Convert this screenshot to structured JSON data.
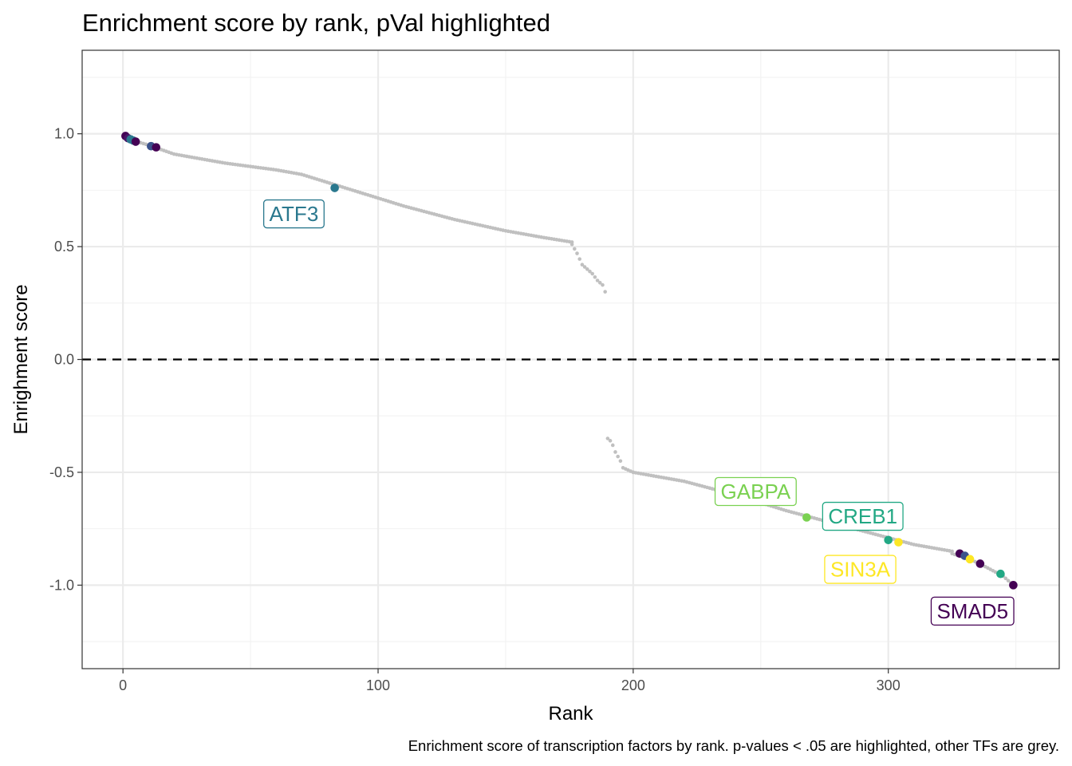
{
  "chart_data": {
    "type": "scatter",
    "title": "Enrichment score by rank, pVal highlighted",
    "xlabel": "Rank",
    "ylabel": "Enrighment score",
    "caption": "Enrichment score of transcription factors by rank. p-values < .05 are highlighted, other TFs are grey.",
    "xlim": [
      -16,
      367
    ],
    "ylim": [
      -1.37,
      1.37
    ],
    "x_ticks": [
      0,
      100,
      200,
      300
    ],
    "x_tick_labels": [
      "0",
      "100",
      "200",
      "300"
    ],
    "y_ticks": [
      -1.0,
      -0.5,
      0.0,
      0.5,
      1.0
    ],
    "y_tick_labels": [
      "-1.0",
      "-0.5",
      "0.0",
      "0.5",
      "1.0"
    ],
    "grid": true,
    "reference_line": {
      "y": 0,
      "style": "dashed"
    },
    "grey_color": "#c0c0c0",
    "grey_segments": [
      {
        "x": [
          1,
          10,
          20,
          40,
          60,
          70,
          90,
          110,
          130,
          150,
          165,
          176
        ],
        "y": [
          0.98,
          0.95,
          0.91,
          0.87,
          0.84,
          0.82,
          0.75,
          0.68,
          0.62,
          0.57,
          0.54,
          0.52
        ]
      },
      {
        "x": [
          176,
          178,
          180,
          182,
          184,
          186,
          188,
          189
        ],
        "y": [
          0.51,
          0.47,
          0.42,
          0.4,
          0.38,
          0.35,
          0.33,
          0.3
        ]
      },
      {
        "x": [
          190,
          191,
          192,
          193,
          194,
          195,
          196,
          198,
          200
        ],
        "y": [
          -0.35,
          -0.36,
          -0.38,
          -0.41,
          -0.43,
          -0.45,
          -0.48,
          -0.49,
          -0.5
        ]
      },
      {
        "x": [
          200,
          210,
          220,
          240,
          260,
          280,
          300,
          310,
          320,
          325
        ],
        "y": [
          -0.5,
          -0.52,
          -0.54,
          -0.6,
          -0.67,
          -0.73,
          -0.79,
          -0.82,
          -0.84,
          -0.85
        ]
      },
      {
        "x": [
          325,
          330,
          335,
          340,
          345,
          349
        ],
        "y": [
          -0.86,
          -0.88,
          -0.9,
          -0.93,
          -0.96,
          -1.0
        ]
      }
    ],
    "highlighted": [
      {
        "x": 1,
        "y": 0.99,
        "color": "#440154"
      },
      {
        "x": 2,
        "y": 0.98,
        "color": "#481668"
      },
      {
        "x": 3,
        "y": 0.975,
        "color": "#2a788e"
      },
      {
        "x": 4,
        "y": 0.97,
        "color": "#2a788e"
      },
      {
        "x": 5,
        "y": 0.965,
        "color": "#440154"
      },
      {
        "x": 11,
        "y": 0.945,
        "color": "#3b528b"
      },
      {
        "x": 13,
        "y": 0.94,
        "color": "#440154"
      },
      {
        "x": 83,
        "y": 0.76,
        "color": "#2a788e"
      },
      {
        "x": 268,
        "y": -0.7,
        "color": "#7ad151"
      },
      {
        "x": 300,
        "y": -0.8,
        "color": "#22a884"
      },
      {
        "x": 304,
        "y": -0.81,
        "color": "#fde725"
      },
      {
        "x": 328,
        "y": -0.86,
        "color": "#440154"
      },
      {
        "x": 330,
        "y": -0.87,
        "color": "#3b528b"
      },
      {
        "x": 332,
        "y": -0.885,
        "color": "#fde725"
      },
      {
        "x": 336,
        "y": -0.905,
        "color": "#440154"
      },
      {
        "x": 344,
        "y": -0.95,
        "color": "#22a884"
      },
      {
        "x": 349,
        "y": -1.0,
        "color": "#440154"
      }
    ],
    "labels": [
      {
        "text": "ATF3",
        "x": 67,
        "y": 0.645,
        "color": "#2a788e"
      },
      {
        "text": "GABPA",
        "x": 248,
        "y": -0.585,
        "color": "#7ad151"
      },
      {
        "text": "CREB1",
        "x": 290,
        "y": -0.695,
        "color": "#22a884"
      },
      {
        "text": "SIN3A",
        "x": 289,
        "y": -0.93,
        "color": "#fde725"
      },
      {
        "text": "SMAD5",
        "x": 333,
        "y": -1.115,
        "color": "#440154"
      }
    ]
  }
}
